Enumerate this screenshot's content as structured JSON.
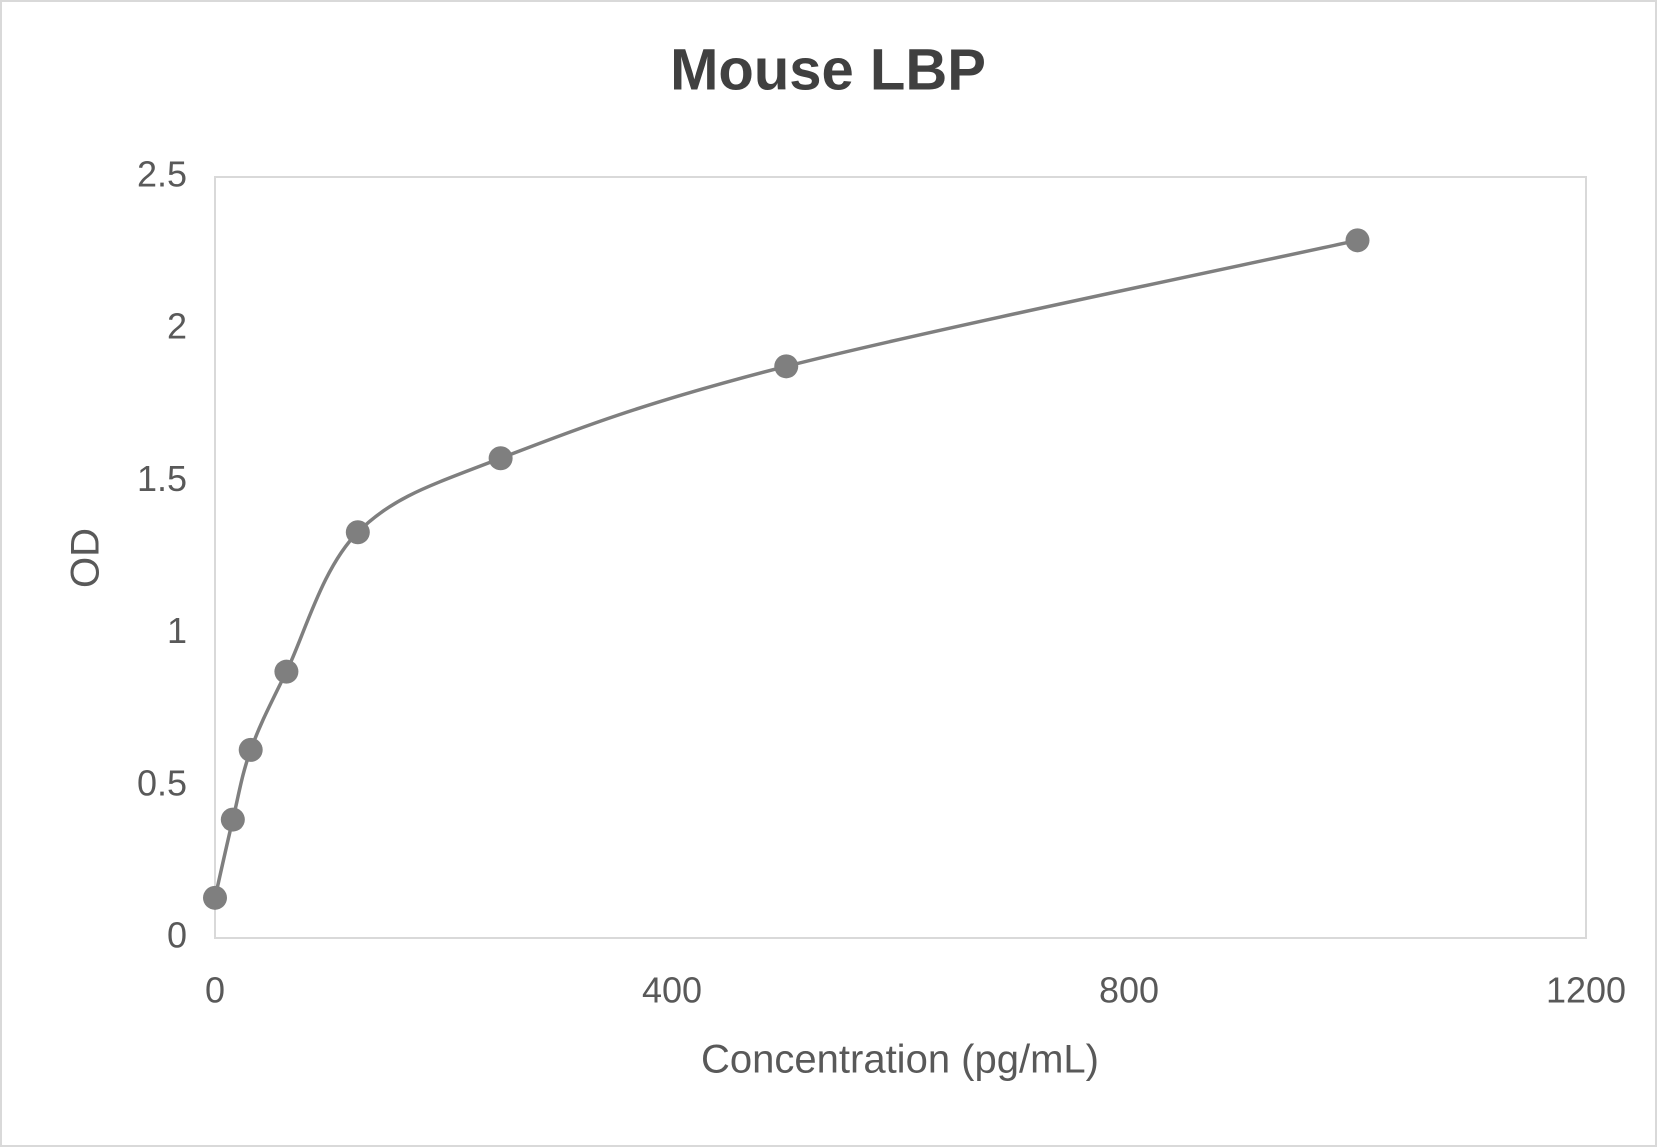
{
  "chart_data": {
    "type": "line",
    "title": "Mouse LBP",
    "x_label": "Concentration (pg/mL)",
    "y_label": "OD",
    "x": [
      0,
      15.6,
      31.25,
      62.5,
      125,
      250,
      500,
      1000
    ],
    "series": [
      {
        "color": "#7f7f7f",
        "values": [
          0.132,
          0.389,
          0.618,
          0.875,
          1.333,
          1.576,
          1.878,
          2.292
        ]
      }
    ],
    "smooth": true,
    "markers": true,
    "grid": false,
    "xlim": [
      0,
      1200
    ],
    "xticks": [
      0,
      400,
      800,
      1200
    ],
    "ylim": [
      0,
      2.5
    ],
    "yticks": [
      0,
      0.5,
      1,
      1.5,
      2,
      2.5
    ]
  }
}
